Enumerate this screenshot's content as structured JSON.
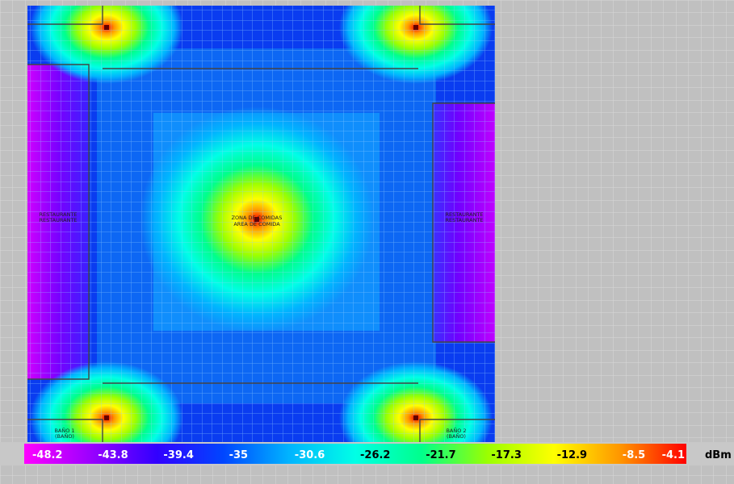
{
  "heatmap": {
    "unit": "dBm",
    "scale_labels": [
      "-48.2",
      "-43.8",
      "-39.4",
      "-35",
      "-30.6",
      "-26.2",
      "-21.7",
      "-17.3",
      "-12.9",
      "-8.5",
      "-4.1"
    ],
    "scale_colors": [
      "#ff00ff",
      "#9b00ff",
      "#3200ff",
      "#0045ff",
      "#00b4ff",
      "#00ffe6",
      "#00ff8c",
      "#9bff00",
      "#ffff00",
      "#ff9600",
      "#ff0000"
    ],
    "access_points_count": 5
  },
  "rooms": {
    "left": [
      "RESTAURANTE",
      "RESTAURANTE"
    ],
    "right": [
      "RESTAURANTE",
      "RESTAURANTE"
    ],
    "center": [
      "ZONA DE COMIDAS",
      "AREA DE COMIDA"
    ],
    "bottom_left": [
      "BAÑO 1",
      "(BAÑO)"
    ],
    "bottom_right": [
      "BAÑO 2",
      "(BAÑO)"
    ]
  }
}
